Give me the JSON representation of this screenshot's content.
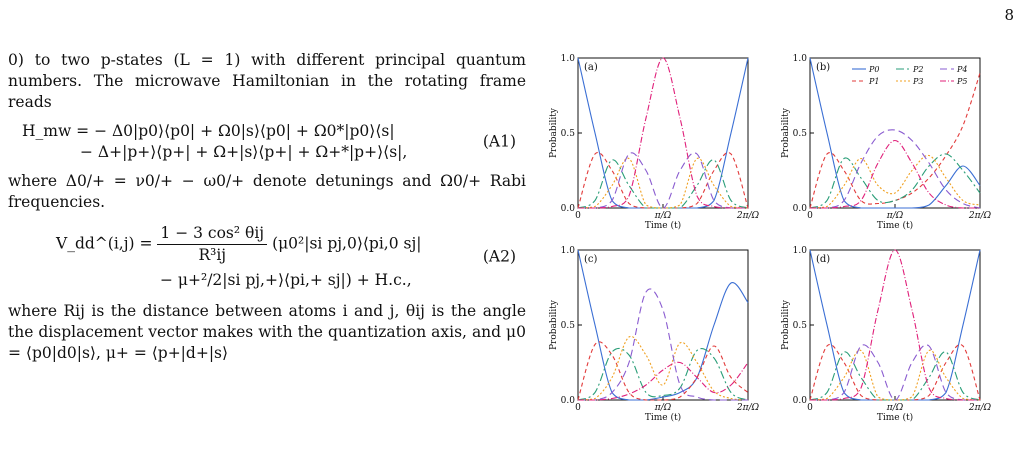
{
  "page_number": "8",
  "text": {
    "para1": "0) to two p-states (L = 1) with different principal quantum numbers. The microwave Hamiltonian in the rotating frame reads",
    "eq1_line1": "H_mw = − Δ0|p0⟩⟨p0| + Ω0|s⟩⟨p0| + Ω0*|p0⟩⟨s|",
    "eq1_line2": "− Δ+|p+⟩⟨p+| + Ω+|s⟩⟨p+| + Ω+*|p+⟩⟨s|,",
    "eq1_tag": "(A1)",
    "para2": "where Δ0/+ = ν0/+ − ω0/+ denote detunings and Ω0/+ Rabi frequencies.",
    "eq2_lhs": "V_dd^(i,j) =",
    "eq2_num": "1 − 3 cos² θij",
    "eq2_den": "R³ij",
    "eq2_line1_rest": "(μ0²|si pj,0⟩⟨pi,0 sj|",
    "eq2_line2": "− μ+²/2|si pj,+⟩⟨pi,+ sj|) + H.c.,",
    "eq2_tag": "(A2)",
    "para3": "where Rij is the distance between atoms i and j, θij is the angle the displacement vector makes with the quantization axis, and μ0 = ⟨p0|d0|s⟩,    μ+ = ⟨p+|d+|s⟩"
  },
  "figure": {
    "xlabel": "Time (t)",
    "ylabel": "Probability",
    "xticks": [
      "0",
      "π/Ω",
      "2π/Ω"
    ],
    "yticks": [
      "0.0",
      "0.5",
      "1.0"
    ],
    "legend": [
      "P0",
      "P1",
      "P2",
      "P3",
      "P4",
      "P5"
    ],
    "colors": [
      "#3b6fd4",
      "#e23b3b",
      "#2a9e78",
      "#f0a020",
      "#8a5cd0",
      "#e0207a"
    ]
  },
  "chart_data": [
    {
      "type": "line",
      "panel": "(a)",
      "xlim": [
        0,
        2
      ],
      "ylim": [
        0,
        1
      ],
      "x_units": "π/Ω",
      "series": [
        {
          "name": "P0",
          "x": [
            0,
            0.2,
            0.4,
            0.6,
            0.8,
            1,
            1.2,
            1.4,
            1.6,
            1.8,
            2
          ],
          "y": [
            1,
            0.5,
            0.05,
            0,
            0,
            0,
            0,
            0,
            0.05,
            0.5,
            1
          ]
        },
        {
          "name": "P1",
          "x": [
            0,
            0.2,
            0.4,
            0.6,
            0.8,
            1,
            1.2,
            1.4,
            1.6,
            1.8,
            2
          ],
          "y": [
            0,
            0.36,
            0.25,
            0.03,
            0,
            0,
            0,
            0.03,
            0.25,
            0.36,
            0
          ]
        },
        {
          "name": "P2",
          "x": [
            0,
            0.2,
            0.4,
            0.6,
            0.8,
            1,
            1.2,
            1.4,
            1.6,
            1.8,
            2
          ],
          "y": [
            0,
            0.05,
            0.32,
            0.15,
            0,
            0,
            0,
            0.15,
            0.32,
            0.05,
            0
          ]
        },
        {
          "name": "P3",
          "x": [
            0,
            0.2,
            0.4,
            0.6,
            0.8,
            1,
            1.2,
            1.4,
            1.6,
            1.8,
            2
          ],
          "y": [
            0,
            0.01,
            0.15,
            0.33,
            0.02,
            0,
            0.02,
            0.33,
            0.15,
            0.01,
            0
          ]
        },
        {
          "name": "P4",
          "x": [
            0,
            0.2,
            0.4,
            0.6,
            0.8,
            1,
            1.2,
            1.4,
            1.6,
            1.8,
            2
          ],
          "y": [
            0,
            0,
            0.05,
            0.36,
            0.25,
            0,
            0.25,
            0.36,
            0.05,
            0,
            0
          ]
        },
        {
          "name": "P5",
          "x": [
            0,
            0.2,
            0.4,
            0.6,
            0.8,
            1,
            1.2,
            1.4,
            1.6,
            1.8,
            2
          ],
          "y": [
            0,
            0,
            0.01,
            0.08,
            0.6,
            1,
            0.6,
            0.08,
            0.01,
            0,
            0
          ]
        }
      ]
    },
    {
      "type": "line",
      "panel": "(b)",
      "xlim": [
        0,
        2
      ],
      "ylim": [
        0,
        1
      ],
      "x_units": "π/Ω",
      "series": [
        {
          "name": "P0",
          "x": [
            0,
            0.2,
            0.4,
            0.6,
            0.8,
            1,
            1.2,
            1.4,
            1.6,
            1.8,
            2
          ],
          "y": [
            1,
            0.5,
            0.05,
            0,
            0,
            0,
            0,
            0.02,
            0.15,
            0.28,
            0.15
          ]
        },
        {
          "name": "P1",
          "x": [
            0,
            0.2,
            0.4,
            0.6,
            0.8,
            1,
            1.2,
            1.4,
            1.6,
            1.8,
            2
          ],
          "y": [
            0,
            0.36,
            0.25,
            0.05,
            0.03,
            0.05,
            0.1,
            0.2,
            0.35,
            0.55,
            0.9
          ]
        },
        {
          "name": "P2",
          "x": [
            0,
            0.2,
            0.4,
            0.6,
            0.8,
            1,
            1.2,
            1.4,
            1.6,
            1.8,
            2
          ],
          "y": [
            0,
            0.05,
            0.33,
            0.2,
            0.05,
            0.05,
            0.12,
            0.28,
            0.36,
            0.25,
            0.1
          ]
        },
        {
          "name": "P3",
          "x": [
            0,
            0.2,
            0.4,
            0.6,
            0.8,
            1,
            1.2,
            1.4,
            1.6,
            1.8,
            2
          ],
          "y": [
            0,
            0.01,
            0.15,
            0.33,
            0.15,
            0.1,
            0.25,
            0.35,
            0.2,
            0.05,
            0.02
          ]
        },
        {
          "name": "P4",
          "x": [
            0,
            0.2,
            0.4,
            0.6,
            0.8,
            1,
            1.2,
            1.4,
            1.6,
            1.8,
            2
          ],
          "y": [
            0,
            0,
            0.05,
            0.3,
            0.48,
            0.52,
            0.45,
            0.3,
            0.12,
            0.03,
            0
          ]
        },
        {
          "name": "P5",
          "x": [
            0,
            0.2,
            0.4,
            0.6,
            0.8,
            1,
            1.2,
            1.4,
            1.6,
            1.8,
            2
          ],
          "y": [
            0,
            0,
            0.01,
            0.05,
            0.3,
            0.45,
            0.3,
            0.1,
            0.02,
            0,
            0
          ]
        }
      ]
    },
    {
      "type": "line",
      "panel": "(c)",
      "xlim": [
        0,
        2
      ],
      "ylim": [
        0,
        1
      ],
      "x_units": "π/Ω",
      "series": [
        {
          "name": "P0",
          "x": [
            0,
            0.2,
            0.4,
            0.6,
            0.8,
            1,
            1.2,
            1.4,
            1.6,
            1.8,
            2
          ],
          "y": [
            1,
            0.5,
            0.05,
            0,
            0,
            0.02,
            0.05,
            0.15,
            0.5,
            0.78,
            0.65
          ]
        },
        {
          "name": "P1",
          "x": [
            0,
            0.2,
            0.4,
            0.6,
            0.8,
            1,
            1.2,
            1.4,
            1.6,
            1.8,
            2
          ],
          "y": [
            0,
            0.37,
            0.3,
            0.05,
            0,
            0,
            0.02,
            0.15,
            0.36,
            0.15,
            0.05
          ]
        },
        {
          "name": "P2",
          "x": [
            0,
            0.2,
            0.4,
            0.6,
            0.8,
            1,
            1.2,
            1.4,
            1.6,
            1.8,
            2
          ],
          "y": [
            0,
            0.05,
            0.32,
            0.3,
            0.05,
            0.03,
            0.08,
            0.33,
            0.28,
            0.05,
            0
          ]
        },
        {
          "name": "P3",
          "x": [
            0,
            0.2,
            0.4,
            0.6,
            0.8,
            1,
            1.2,
            1.4,
            1.6,
            1.8,
            2
          ],
          "y": [
            0,
            0.01,
            0.15,
            0.42,
            0.3,
            0.1,
            0.38,
            0.25,
            0.06,
            0.01,
            0
          ]
        },
        {
          "name": "P4",
          "x": [
            0,
            0.2,
            0.4,
            0.6,
            0.8,
            1,
            1.2,
            1.4,
            1.6,
            1.8,
            2
          ],
          "y": [
            0,
            0,
            0.05,
            0.25,
            0.72,
            0.6,
            0.1,
            0.02,
            0,
            0,
            0
          ]
        },
        {
          "name": "P5",
          "x": [
            0,
            0.2,
            0.4,
            0.6,
            0.8,
            1,
            1.2,
            1.4,
            1.6,
            1.8,
            2
          ],
          "y": [
            0,
            0,
            0.01,
            0.04,
            0.1,
            0.2,
            0.25,
            0.15,
            0.05,
            0.1,
            0.25
          ]
        }
      ]
    },
    {
      "type": "line",
      "panel": "(d)",
      "xlim": [
        0,
        2
      ],
      "ylim": [
        0,
        1
      ],
      "x_units": "π/Ω",
      "series": [
        {
          "name": "P0",
          "x": [
            0,
            0.2,
            0.4,
            0.6,
            0.8,
            1,
            1.2,
            1.4,
            1.6,
            1.8,
            2
          ],
          "y": [
            1,
            0.5,
            0.05,
            0,
            0,
            0,
            0,
            0,
            0.05,
            0.5,
            1
          ]
        },
        {
          "name": "P1",
          "x": [
            0,
            0.2,
            0.4,
            0.6,
            0.8,
            1,
            1.2,
            1.4,
            1.6,
            1.8,
            2
          ],
          "y": [
            0,
            0.36,
            0.25,
            0.03,
            0,
            0,
            0,
            0.03,
            0.25,
            0.36,
            0
          ]
        },
        {
          "name": "P2",
          "x": [
            0,
            0.2,
            0.4,
            0.6,
            0.8,
            1,
            1.2,
            1.4,
            1.6,
            1.8,
            2
          ],
          "y": [
            0,
            0.05,
            0.32,
            0.15,
            0,
            0,
            0,
            0.15,
            0.32,
            0.05,
            0
          ]
        },
        {
          "name": "P3",
          "x": [
            0,
            0.2,
            0.4,
            0.6,
            0.8,
            1,
            1.2,
            1.4,
            1.6,
            1.8,
            2
          ],
          "y": [
            0,
            0.01,
            0.15,
            0.33,
            0.02,
            0,
            0.02,
            0.33,
            0.15,
            0.01,
            0
          ]
        },
        {
          "name": "P4",
          "x": [
            0,
            0.2,
            0.4,
            0.6,
            0.8,
            1,
            1.2,
            1.4,
            1.6,
            1.8,
            2
          ],
          "y": [
            0,
            0,
            0.05,
            0.36,
            0.25,
            0,
            0.25,
            0.36,
            0.05,
            0,
            0
          ]
        },
        {
          "name": "P5",
          "x": [
            0,
            0.2,
            0.4,
            0.6,
            0.8,
            1,
            1.2,
            1.4,
            1.6,
            1.8,
            2
          ],
          "y": [
            0,
            0,
            0.01,
            0.08,
            0.6,
            1,
            0.6,
            0.08,
            0.01,
            0,
            0
          ]
        }
      ]
    }
  ]
}
